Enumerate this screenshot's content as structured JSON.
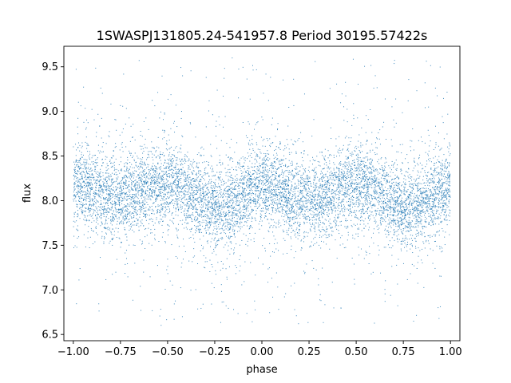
{
  "chart_data": {
    "type": "scatter",
    "title": "1SWASPJ131805.24-541957.8 Period 30195.57422s",
    "xlabel": "phase",
    "ylabel": "flux",
    "xlim": [
      -1.05,
      1.05
    ],
    "ylim": [
      6.43,
      9.73
    ],
    "xticks": [
      -1.0,
      -0.75,
      -0.5,
      -0.25,
      0.0,
      0.25,
      0.5,
      0.75,
      1.0
    ],
    "xtick_labels": [
      "−1.00",
      "−0.75",
      "−0.50",
      "−0.25",
      "0.00",
      "0.25",
      "0.50",
      "0.75",
      "1.00"
    ],
    "yticks": [
      6.5,
      7.0,
      7.5,
      8.0,
      8.5,
      9.0,
      9.5
    ],
    "ytick_labels": [
      "6.5",
      "7.0",
      "7.5",
      "8.0",
      "8.5",
      "9.0",
      "9.5"
    ],
    "grid": false,
    "marker_color": "#1f77b4",
    "series": [
      {
        "x_range": [
          -1.0,
          1.0
        ],
        "y_clip": [
          6.55,
          9.6
        ],
        "trend": [
          {
            "x": -1.0,
            "y": 8.15
          },
          {
            "x": -0.75,
            "y": 8.05
          },
          {
            "x": -0.5,
            "y": 8.18
          },
          {
            "x": -0.22,
            "y": 7.92
          },
          {
            "x": 0.0,
            "y": 8.18
          },
          {
            "x": 0.25,
            "y": 8.0
          },
          {
            "x": 0.5,
            "y": 8.18
          },
          {
            "x": 0.78,
            "y": 7.92
          },
          {
            "x": 1.0,
            "y": 8.15
          }
        ],
        "scatter_sd": 0.22,
        "outlier_spread": [
          6.6,
          9.6
        ]
      }
    ]
  }
}
